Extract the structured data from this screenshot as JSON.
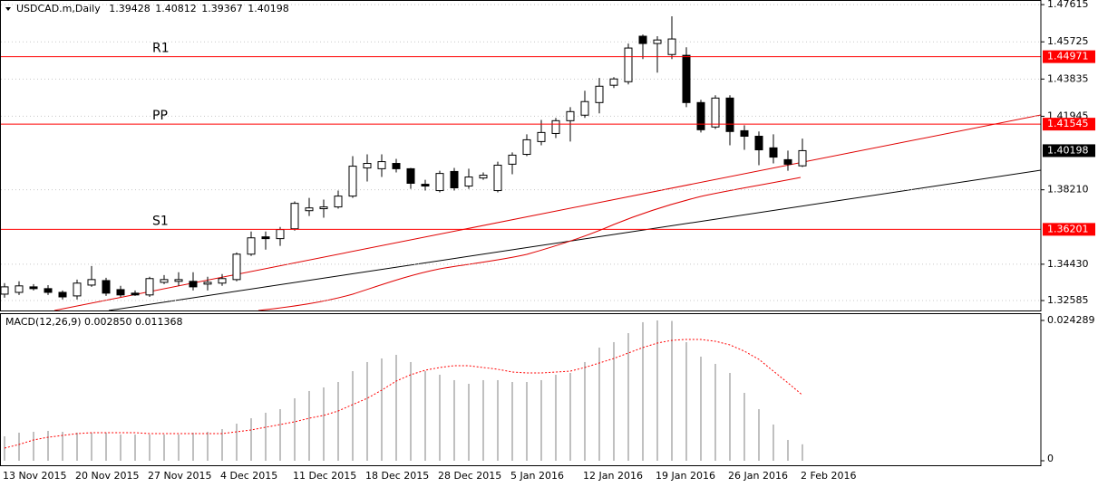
{
  "chart_data": [
    {
      "type": "candlestick",
      "symbol": "USDCAD.m,Daily",
      "categories": [
        "13 Nov 2015",
        null,
        null,
        null,
        null,
        "20 Nov 2015",
        null,
        null,
        null,
        null,
        "27 Nov 2015",
        null,
        null,
        null,
        null,
        "4 Dec 2015",
        null,
        null,
        null,
        null,
        "11 Dec 2015",
        null,
        null,
        null,
        null,
        "18 Dec 2015",
        null,
        null,
        null,
        null,
        "28 Dec 2015",
        null,
        null,
        null,
        null,
        "5 Jan 2016",
        null,
        null,
        null,
        null,
        "12 Jan 2016",
        null,
        null,
        null,
        null,
        "19 Jan 2016",
        null,
        null,
        null,
        null,
        "26 Jan 2016",
        null,
        null,
        null,
        null,
        "2 Feb 2016"
      ],
      "open": [
        1.3291,
        1.33,
        1.3328,
        1.3319,
        1.33,
        1.3282,
        1.3337,
        1.336,
        1.3314,
        1.3296,
        1.3287,
        1.3351,
        1.3356,
        1.3356,
        1.3342,
        1.3347,
        1.3365,
        1.3494,
        1.3582,
        1.3573,
        1.3623,
        1.3715,
        1.3725,
        1.3734,
        1.3789,
        1.3932,
        1.3928,
        1.3955,
        1.3928,
        1.3849,
        1.3817,
        1.3914,
        1.384,
        1.3881,
        1.3817,
        1.3951,
        1.4001,
        1.4066,
        1.4107,
        1.4172,
        1.42,
        1.4264,
        1.4352,
        1.437,
        1.4601,
        1.4564,
        1.4508,
        1.4504,
        1.4264,
        1.414,
        1.4287,
        1.4121,
        1.4093,
        1.4034,
        1.3974,
        1.39428
      ],
      "high": [
        1.3347,
        1.3356,
        1.3342,
        1.3337,
        1.331,
        1.3365,
        1.3434,
        1.3374,
        1.3333,
        1.331,
        1.3379,
        1.3388,
        1.3402,
        1.3402,
        1.3379,
        1.3393,
        1.3503,
        1.3609,
        1.3609,
        1.3632,
        1.3762,
        1.378,
        1.3771,
        1.3817,
        1.3992,
        1.4001,
        1.4001,
        1.3978,
        1.3932,
        1.3872,
        1.3918,
        1.3932,
        1.3928,
        1.3909,
        1.3964,
        1.4011,
        1.4103,
        1.4176,
        1.4186,
        1.4241,
        1.4324,
        1.4389,
        1.4393,
        1.4564,
        1.461,
        1.4601,
        1.4702,
        1.4545,
        1.4278,
        1.4301,
        1.4301,
        1.4149,
        1.4117,
        1.4103,
        1.402,
        1.40812
      ],
      "low": [
        1.3273,
        1.3287,
        1.331,
        1.3287,
        1.3264,
        1.3264,
        1.3328,
        1.3282,
        1.3277,
        1.3282,
        1.3277,
        1.3342,
        1.3333,
        1.331,
        1.331,
        1.3333,
        1.3356,
        1.3485,
        1.3517,
        1.3536,
        1.3614,
        1.3688,
        1.3679,
        1.3725,
        1.378,
        1.3863,
        1.3886,
        1.3909,
        1.3826,
        1.3817,
        1.3808,
        1.3817,
        1.3826,
        1.3872,
        1.3808,
        1.39,
        1.3992,
        1.4047,
        1.4084,
        1.4066,
        1.4186,
        1.4209,
        1.4338,
        1.4356,
        1.4485,
        1.4416,
        1.4485,
        1.4241,
        1.4112,
        1.413,
        1.4047,
        1.4024,
        1.3946,
        1.3955,
        1.3918,
        1.39367
      ],
      "close": [
        1.3328,
        1.3333,
        1.3319,
        1.33,
        1.3277,
        1.3347,
        1.3365,
        1.3296,
        1.3287,
        1.3287,
        1.337,
        1.3365,
        1.3365,
        1.3328,
        1.3351,
        1.337,
        1.3494,
        1.3577,
        1.3573,
        1.3619,
        1.3752,
        1.3729,
        1.3734,
        1.3789,
        1.3941,
        1.3955,
        1.3964,
        1.3928,
        1.3854,
        1.384,
        1.3904,
        1.3831,
        1.3886,
        1.3895,
        1.3946,
        1.3997,
        1.4075,
        1.4112,
        1.4172,
        1.4218,
        1.4269,
        1.4347,
        1.4384,
        1.4541,
        1.4564,
        1.4582,
        1.4587,
        1.4264,
        1.4126,
        1.4287,
        1.4117,
        1.4093,
        1.4024,
        1.3987,
        1.3951,
        1.40198
      ],
      "bull_color": "#ffffff",
      "bear_color": "#000000",
      "ylim": [
        1.3208,
        1.4785
      ],
      "yticks": [
        1.32585,
        {
          "value": 1.3443,
          "label": "1.34430"
        },
        {
          "value": 1.3821,
          "label": "1.38210"
        },
        1.41945,
        1.43835,
        1.45725,
        1.47615
      ],
      "grid": true,
      "levels": [
        {
          "name": "R1",
          "value": 1.44971,
          "color": "#ff0000"
        },
        {
          "name": "PP",
          "value": 1.41545,
          "color": "#ff0000"
        },
        {
          "name": "S1",
          "value": 1.36201,
          "color": "#ff0000"
        }
      ]
    },
    {
      "type": "macd",
      "title": "MACD(12,26,9) 0.002850 0.011368",
      "histogram": [
        0.00423,
        0.00486,
        0.00501,
        0.00517,
        0.00501,
        0.00486,
        0.00486,
        0.00486,
        0.00454,
        0.00454,
        0.00454,
        0.00454,
        0.00454,
        0.00486,
        0.00501,
        0.00548,
        0.00642,
        0.00736,
        0.00831,
        0.00893,
        0.01081,
        0.01207,
        0.01269,
        0.01363,
        0.01551,
        0.01708,
        0.01771,
        0.01833,
        0.01708,
        0.01551,
        0.01489,
        0.01395,
        0.01332,
        0.01395,
        0.01395,
        0.01363,
        0.01363,
        0.01395,
        0.01489,
        0.0152,
        0.01708,
        0.01959,
        0.02053,
        0.02209,
        0.02398,
        0.02429,
        0.0242,
        0.02053,
        0.01802,
        0.01677,
        0.0152,
        0.01175,
        0.00893,
        0.00627,
        0.0036,
        0.00285
      ],
      "signal": [
        0.00219,
        0.00282,
        0.0036,
        0.00407,
        0.00439,
        0.0047,
        0.00486,
        0.00486,
        0.00486,
        0.00486,
        0.0047,
        0.0047,
        0.0047,
        0.0047,
        0.0047,
        0.0047,
        0.00501,
        0.00533,
        0.0058,
        0.00627,
        0.00674,
        0.00736,
        0.00784,
        0.00862,
        0.00972,
        0.01081,
        0.01222,
        0.01379,
        0.01489,
        0.01567,
        0.01614,
        0.01645,
        0.01645,
        0.01614,
        0.01583,
        0.01536,
        0.0152,
        0.0152,
        0.01536,
        0.01551,
        0.01614,
        0.01692,
        0.01771,
        0.01865,
        0.01959,
        0.02037,
        0.02084,
        0.021,
        0.021,
        0.02068,
        0.02006,
        0.01896,
        0.01755,
        0.01551,
        0.01348,
        0.011368
      ],
      "histogram_color": "#c0c0c0",
      "signal_color": "#ff0000",
      "ylim": [
        0,
        0.02554
      ],
      "yticks": [
        0,
        0.024289
      ]
    }
  ]
}
